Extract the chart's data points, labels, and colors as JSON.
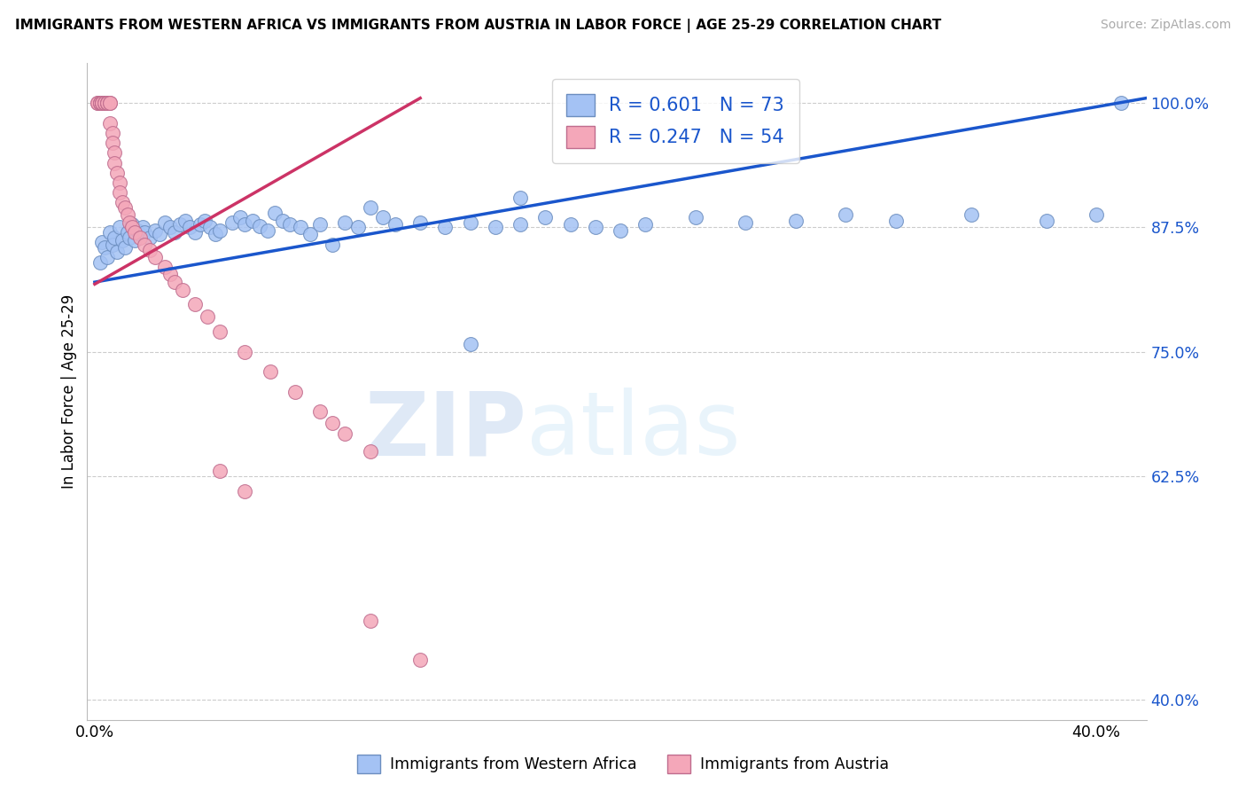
{
  "title": "IMMIGRANTS FROM WESTERN AFRICA VS IMMIGRANTS FROM AUSTRIA IN LABOR FORCE | AGE 25-29 CORRELATION CHART",
  "source": "Source: ZipAtlas.com",
  "ylabel": "In Labor Force | Age 25-29",
  "xlim": [
    -0.003,
    0.42
  ],
  "ylim": [
    0.38,
    1.04
  ],
  "yticks": [
    0.4,
    0.625,
    0.75,
    0.875,
    1.0
  ],
  "ytick_labels": [
    "40.0%",
    "62.5%",
    "75.0%",
    "87.5%",
    "100.0%"
  ],
  "xtick_vals": [
    0.0,
    0.05,
    0.1,
    0.15,
    0.2,
    0.25,
    0.3,
    0.35,
    0.4
  ],
  "xtick_labels": [
    "0.0%",
    "",
    "",
    "",
    "",
    "",
    "",
    "",
    "40.0%"
  ],
  "R_blue": "0.601",
  "N_blue": "73",
  "R_pink": "0.247",
  "N_pink": "54",
  "color_blue_face": "#a4c2f4",
  "color_blue_edge": "#6c8ebf",
  "color_pink_face": "#f4a7b9",
  "color_pink_edge": "#bf6c8e",
  "line_blue": "#1a56cc",
  "line_pink": "#cc3366",
  "watermark_zip": "ZIP",
  "watermark_atlas": "atlas",
  "blue_x": [
    0.002,
    0.003,
    0.004,
    0.005,
    0.006,
    0.007,
    0.008,
    0.009,
    0.01,
    0.011,
    0.012,
    0.013,
    0.014,
    0.015,
    0.016,
    0.017,
    0.018,
    0.019,
    0.02,
    0.022,
    0.024,
    0.026,
    0.028,
    0.03,
    0.032,
    0.034,
    0.036,
    0.038,
    0.04,
    0.042,
    0.044,
    0.046,
    0.048,
    0.05,
    0.055,
    0.058,
    0.06,
    0.063,
    0.066,
    0.069,
    0.072,
    0.075,
    0.078,
    0.082,
    0.086,
    0.09,
    0.095,
    0.1,
    0.105,
    0.11,
    0.115,
    0.12,
    0.13,
    0.14,
    0.15,
    0.16,
    0.17,
    0.18,
    0.19,
    0.2,
    0.21,
    0.22,
    0.24,
    0.26,
    0.28,
    0.3,
    0.32,
    0.35,
    0.38,
    0.4,
    0.15,
    0.17,
    0.41
  ],
  "blue_y": [
    0.84,
    0.86,
    0.855,
    0.845,
    0.87,
    0.858,
    0.865,
    0.85,
    0.875,
    0.862,
    0.855,
    0.87,
    0.865,
    0.878,
    0.862,
    0.872,
    0.868,
    0.875,
    0.87,
    0.865,
    0.872,
    0.868,
    0.88,
    0.875,
    0.87,
    0.878,
    0.882,
    0.875,
    0.87,
    0.878,
    0.882,
    0.875,
    0.868,
    0.872,
    0.88,
    0.885,
    0.878,
    0.882,
    0.876,
    0.872,
    0.89,
    0.882,
    0.878,
    0.875,
    0.868,
    0.878,
    0.858,
    0.88,
    0.875,
    0.895,
    0.885,
    0.878,
    0.88,
    0.875,
    0.88,
    0.875,
    0.878,
    0.885,
    0.878,
    0.875,
    0.872,
    0.878,
    0.885,
    0.88,
    0.882,
    0.888,
    0.882,
    0.888,
    0.882,
    0.888,
    0.758,
    0.905,
    1.0
  ],
  "pink_x": [
    0.001,
    0.001,
    0.002,
    0.002,
    0.002,
    0.003,
    0.003,
    0.003,
    0.003,
    0.004,
    0.004,
    0.004,
    0.005,
    0.005,
    0.005,
    0.005,
    0.006,
    0.006,
    0.006,
    0.007,
    0.007,
    0.008,
    0.008,
    0.009,
    0.01,
    0.01,
    0.011,
    0.012,
    0.013,
    0.014,
    0.015,
    0.016,
    0.018,
    0.02,
    0.022,
    0.024,
    0.028,
    0.03,
    0.032,
    0.035,
    0.04,
    0.045,
    0.05,
    0.06,
    0.07,
    0.08,
    0.09,
    0.095,
    0.1,
    0.11,
    0.05,
    0.06,
    0.11,
    0.13
  ],
  "pink_y": [
    1.0,
    1.0,
    1.0,
    1.0,
    1.0,
    1.0,
    1.0,
    1.0,
    1.0,
    1.0,
    1.0,
    1.0,
    1.0,
    1.0,
    1.0,
    1.0,
    1.0,
    1.0,
    0.98,
    0.97,
    0.96,
    0.95,
    0.94,
    0.93,
    0.92,
    0.91,
    0.9,
    0.895,
    0.888,
    0.88,
    0.875,
    0.87,
    0.865,
    0.858,
    0.852,
    0.845,
    0.835,
    0.828,
    0.82,
    0.812,
    0.798,
    0.785,
    0.77,
    0.75,
    0.73,
    0.71,
    0.69,
    0.678,
    0.668,
    0.65,
    0.63,
    0.61,
    0.48,
    0.44
  ],
  "blue_trend_x0": 0.0,
  "blue_trend_x1": 0.42,
  "blue_trend_y0": 0.82,
  "blue_trend_y1": 1.005,
  "pink_trend_x0": 0.0,
  "pink_trend_x1": 0.13,
  "pink_trend_y0": 0.818,
  "pink_trend_y1": 1.005
}
